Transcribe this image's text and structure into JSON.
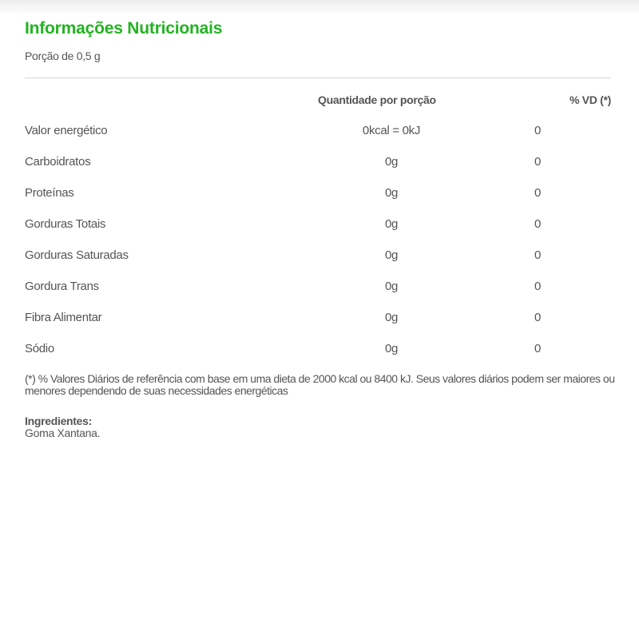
{
  "title": "Informações Nutricionais",
  "serving": "Porção de 0,5 g",
  "table": {
    "headers": {
      "amount": "Quantidade por porção",
      "dv": "% VD (*)"
    },
    "rows": [
      {
        "name": "Valor energético",
        "amount": "0kcal = 0kJ",
        "dv": "0"
      },
      {
        "name": "Carboidratos",
        "amount": "0g",
        "dv": "0"
      },
      {
        "name": "Proteínas",
        "amount": "0g",
        "dv": "0"
      },
      {
        "name": "Gorduras Totais",
        "amount": "0g",
        "dv": "0"
      },
      {
        "name": "Gorduras Saturadas",
        "amount": "0g",
        "dv": "0"
      },
      {
        "name": "Gordura Trans",
        "amount": "0g",
        "dv": "0"
      },
      {
        "name": "Fibra Alimentar",
        "amount": "0g",
        "dv": "0"
      },
      {
        "name": "Sódio",
        "amount": "0g",
        "dv": "0"
      }
    ]
  },
  "footnote": "(*) % Valores Diários de referência com base em uma dieta de 2000 kcal ou 8400 kJ. Seus valores diários podem ser maiores ou menores dependendo de suas necessidades energéticas",
  "ingredients": {
    "label": "Ingredientes:",
    "value": "Goma Xantana."
  },
  "colors": {
    "title": "#22b322",
    "text": "#555555",
    "divider": "#d6d6d6"
  }
}
